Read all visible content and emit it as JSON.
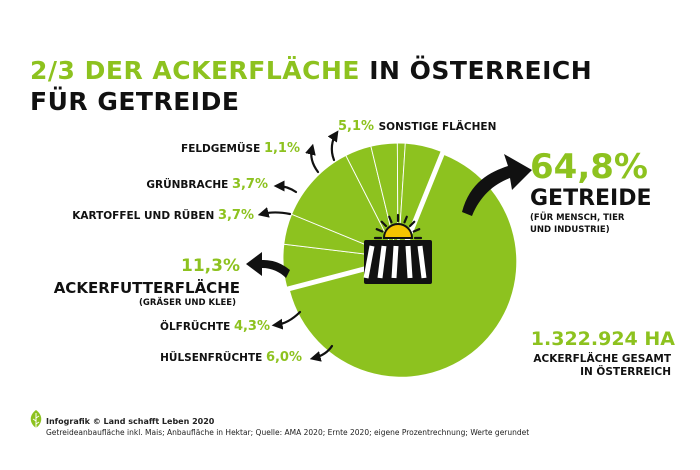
{
  "title": {
    "line1_green": "2/3 DER ACKERFLÄCHE",
    "line1_black": "IN ÖSTERREICH",
    "line2_black": "FÜR GETREIDE"
  },
  "chart_data": {
    "type": "pie",
    "accent_color": "#8dc21f",
    "slices": [
      {
        "label": "GETREIDE",
        "value": 64.8,
        "value_text": "64,8%",
        "note": "(FÜR MENSCH, TIER UND INDUSTRIE)"
      },
      {
        "label": "HÜLSENFRÜCHTE",
        "value": 6.0,
        "value_text": "6,0%"
      },
      {
        "label": "ÖLFRÜCHTE",
        "value": 4.3,
        "value_text": "4,3%"
      },
      {
        "label": "ACKERFUTTERFLÄCHE",
        "value": 11.3,
        "value_text": "11,3%",
        "note": "(GRÄSER UND KLEE)"
      },
      {
        "label": "KARTOFFEL UND RÜBEN",
        "value": 3.7,
        "value_text": "3,7%"
      },
      {
        "label": "GRÜNBRACHE",
        "value": 3.7,
        "value_text": "3,7%"
      },
      {
        "label": "FELDGEMÜSE",
        "value": 1.1,
        "value_text": "1,1%"
      },
      {
        "label": "SONSTIGE FLÄCHEN",
        "value": 5.1,
        "value_text": "5,1%"
      }
    ],
    "total": {
      "value_text": "1.322.924 HA",
      "line1": "ACKERFLÄCHE GESAMT",
      "line2": "IN ÖSTERREICH"
    },
    "center_icon": "sun-over-field-icon"
  },
  "footer": {
    "brand": "Infografik © Land schafft Leben 2020",
    "note": "Getreideanbaufläche inkl. Mais; Anbaufläche in Hektar; Quelle: AMA 2020; Ernte 2020; eigene Prozentrechnung; Werte gerundet",
    "icon": "leaf-logo-icon"
  }
}
